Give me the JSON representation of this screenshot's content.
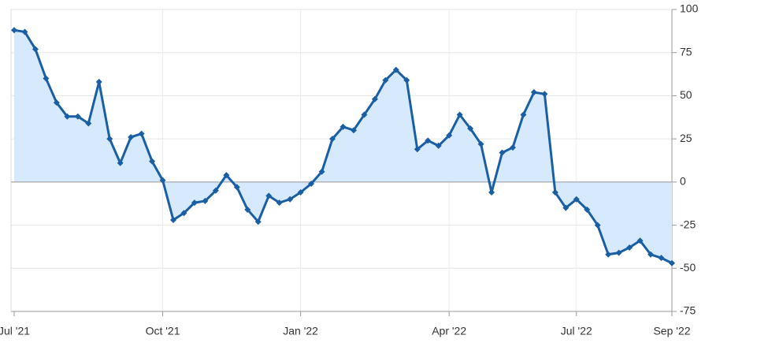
{
  "chart_data": {
    "type": "area",
    "categories": [
      "Jul '21",
      null,
      null,
      null,
      null,
      null,
      null,
      null,
      null,
      null,
      null,
      null,
      null,
      null,
      "Oct '21",
      null,
      null,
      null,
      null,
      null,
      null,
      null,
      null,
      null,
      null,
      null,
      null,
      "Jan '22",
      null,
      null,
      null,
      null,
      null,
      null,
      null,
      null,
      null,
      null,
      null,
      null,
      null,
      "Apr '22",
      null,
      null,
      null,
      null,
      null,
      null,
      null,
      null,
      null,
      null,
      null,
      "Jul '22",
      null,
      null,
      null,
      null,
      null,
      null,
      null,
      null,
      "Sep '22"
    ],
    "series": [
      {
        "color": "#1a5fa4",
        "fill": "#d6e9fd",
        "values": [
          88,
          87,
          77,
          60,
          46,
          38,
          38,
          34,
          58,
          25,
          11,
          26,
          28,
          12,
          1,
          -22,
          -18,
          -12,
          -11,
          -5,
          4,
          -3,
          -16,
          -23,
          -8,
          -12,
          -10,
          -6,
          -1,
          6,
          25,
          32,
          30,
          39,
          48,
          59,
          65,
          59,
          19,
          24,
          21,
          27,
          39,
          31,
          22,
          -6,
          17,
          20,
          39,
          52,
          51,
          -6,
          -15,
          -10,
          -16,
          -25,
          -42,
          -41,
          -38,
          -34,
          -42,
          -44,
          -47
        ]
      }
    ],
    "ylim": [
      -75,
      100
    ],
    "yticks": [
      -75,
      -50,
      -25,
      0,
      25,
      50,
      75,
      100
    ],
    "grid": true
  }
}
